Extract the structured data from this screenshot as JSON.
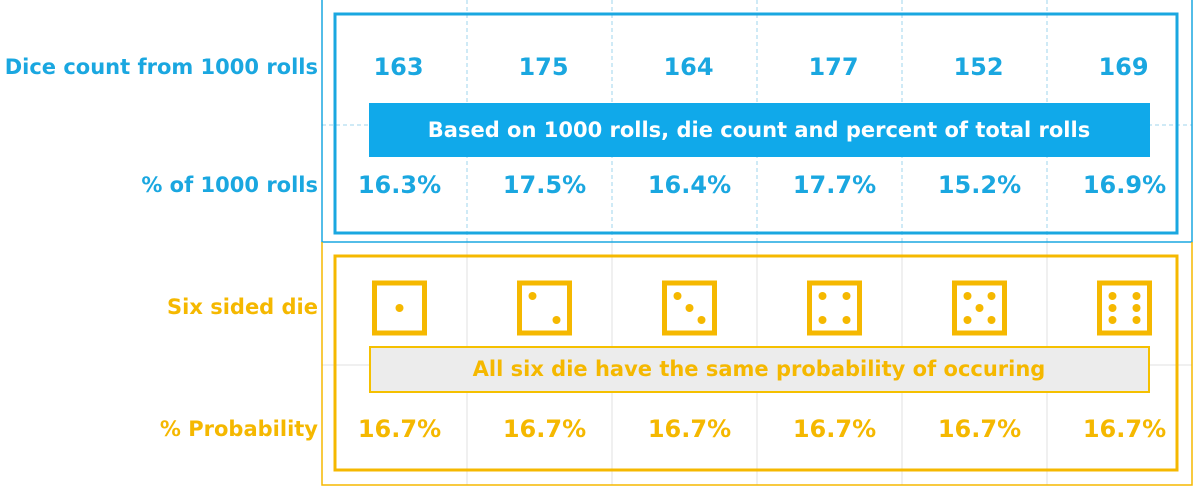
{
  "rows": [
    {
      "label": "Dice count from 1000 rolls",
      "cells": [
        163,
        175,
        164,
        177,
        152,
        169
      ]
    },
    {
      "label": "% of 1000 rolls",
      "cells": [
        "16.3%",
        "17.5%",
        "16.4%",
        "17.7%",
        "15.2%",
        "16.9%"
      ]
    },
    {
      "label": "Six sided die"
    },
    {
      "label": "% Probability",
      "cells": [
        "16.7%",
        "16.7%",
        "16.7%",
        "16.7%",
        "16.7%",
        "16.7%"
      ]
    }
  ],
  "banners": [
    "Based on 1000 rolls, die count and percent of total rolls",
    "All six die have the same probability of occuring"
  ]
}
